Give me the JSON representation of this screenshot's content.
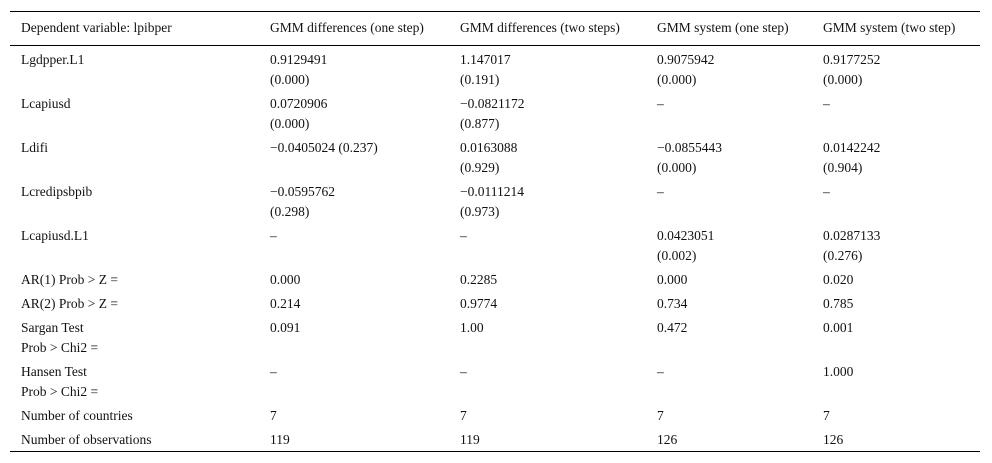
{
  "table": {
    "headers": [
      "Dependent variable: lpibper",
      "GMM differences (one step)",
      "GMM differences (two steps)",
      "GMM system (one step)",
      "GMM system (two step)"
    ],
    "rows": [
      {
        "label": [
          "Lgdpper.L1"
        ],
        "cells": [
          [
            "0.9129491",
            "(0.000)"
          ],
          [
            "1.147017",
            "(0.191)"
          ],
          [
            "0.9075942",
            "(0.000)"
          ],
          [
            "0.9177252",
            "(0.000)"
          ]
        ]
      },
      {
        "label": [
          "Lcapiusd"
        ],
        "cells": [
          [
            "0.0720906",
            "(0.000)"
          ],
          [
            "−0.0821172",
            "(0.877)"
          ],
          [
            "–"
          ],
          [
            "–"
          ]
        ]
      },
      {
        "label": [
          "Ldifi"
        ],
        "cells": [
          [
            "−0.0405024 (0.237)"
          ],
          [
            "0.0163088",
            "(0.929)"
          ],
          [
            "−0.0855443",
            "(0.000)"
          ],
          [
            "0.0142242",
            "(0.904)"
          ]
        ]
      },
      {
        "label": [
          "Lcredipsbpib"
        ],
        "cells": [
          [
            "−0.0595762",
            "(0.298)"
          ],
          [
            "−0.0111214",
            "(0.973)"
          ],
          [
            "–"
          ],
          [
            "–"
          ]
        ]
      },
      {
        "label": [
          "Lcapiusd.L1"
        ],
        "cells": [
          [
            "–"
          ],
          [
            "–"
          ],
          [
            "0.0423051",
            "(0.002)"
          ],
          [
            "0.0287133",
            "(0.276)"
          ]
        ]
      },
      {
        "label": [
          "AR(1) Prob > Z ="
        ],
        "cells": [
          [
            "0.000"
          ],
          [
            "0.2285"
          ],
          [
            "0.000"
          ],
          [
            "0.020"
          ]
        ]
      },
      {
        "label": [
          "AR(2) Prob > Z ="
        ],
        "cells": [
          [
            "0.214"
          ],
          [
            "0.9774"
          ],
          [
            "0.734"
          ],
          [
            "0.785"
          ]
        ]
      },
      {
        "label": [
          "Sargan Test",
          "Prob > Chi2 ="
        ],
        "cells": [
          [
            "0.091"
          ],
          [
            "1.00"
          ],
          [
            "0.472"
          ],
          [
            "0.001"
          ]
        ]
      },
      {
        "label": [
          "Hansen Test",
          "Prob > Chi2 ="
        ],
        "cells": [
          [
            "–"
          ],
          [
            "–"
          ],
          [
            "–"
          ],
          [
            "1.000"
          ]
        ]
      },
      {
        "label": [
          "Number of countries"
        ],
        "cells": [
          [
            "7"
          ],
          [
            "7"
          ],
          [
            "7"
          ],
          [
            "7"
          ]
        ]
      },
      {
        "label": [
          "Number of observations"
        ],
        "cells": [
          [
            "119"
          ],
          [
            "119"
          ],
          [
            "126"
          ],
          [
            "126"
          ]
        ]
      }
    ]
  }
}
